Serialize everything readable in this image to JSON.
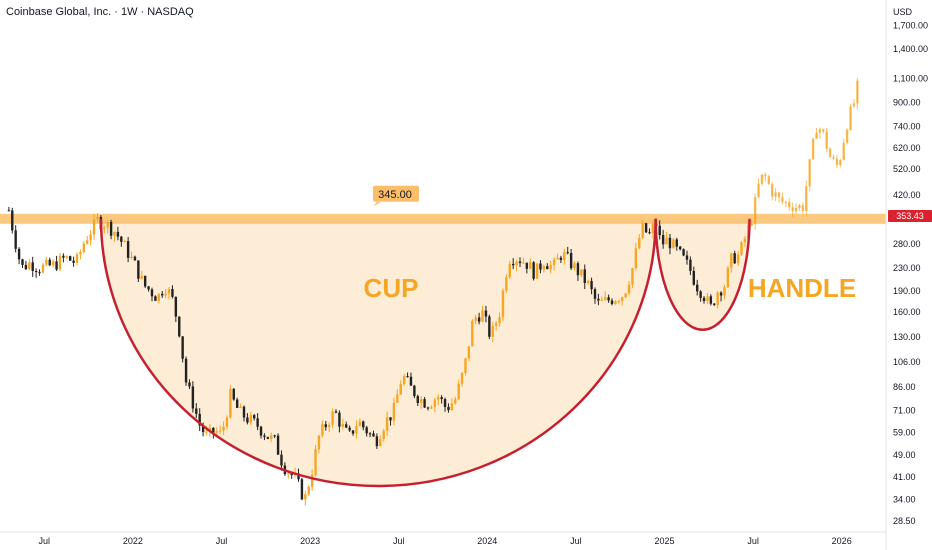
{
  "header": {
    "title": "Coinbase Global, Inc. · 1W · NASDAQ"
  },
  "chart_data": {
    "type": "candlestick",
    "title": "Coinbase Global, Inc. · 1W · NASDAQ",
    "currency": "USD",
    "y_scale": "log",
    "ylim": [
      26,
      2100
    ],
    "xlim": [
      2021.25,
      2026.25
    ],
    "y_ticks": [
      "1,700.00",
      "1,400.00",
      "1,100.00",
      "900.00",
      "740.00",
      "620.00",
      "520.00",
      "420.00",
      "280.00",
      "230.00",
      "190.00",
      "160.00",
      "130.00",
      "106.00",
      "86.00",
      "71.00",
      "59.00",
      "49.00",
      "41.00",
      "34.00",
      "28.50"
    ],
    "x_ticks": [
      {
        "label": "Jul",
        "t": 2021.5
      },
      {
        "label": "2022",
        "t": 2022.0
      },
      {
        "label": "Jul",
        "t": 2022.5
      },
      {
        "label": "2023",
        "t": 2023.0
      },
      {
        "label": "Jul",
        "t": 2023.5
      },
      {
        "label": "2024",
        "t": 2024.0
      },
      {
        "label": "Jul",
        "t": 2024.5
      },
      {
        "label": "2025",
        "t": 2025.0
      },
      {
        "label": "Jul",
        "t": 2025.5
      },
      {
        "label": "2026",
        "t": 2026.0
      }
    ],
    "current_price": "353.43",
    "resistance_level": {
      "label": "345.00",
      "value": 345
    },
    "annotations": {
      "cup": "CUP",
      "handle": "HANDLE"
    },
    "price_path": [
      [
        2021.3,
        370
      ],
      [
        2021.33,
        300
      ],
      [
        2021.37,
        230
      ],
      [
        2021.42,
        240
      ],
      [
        2021.47,
        230
      ],
      [
        2021.55,
        235
      ],
      [
        2021.62,
        250
      ],
      [
        2021.68,
        240
      ],
      [
        2021.73,
        290
      ],
      [
        2021.8,
        340
      ],
      [
        2021.85,
        330
      ],
      [
        2021.9,
        310
      ],
      [
        2021.96,
        270
      ],
      [
        2022.02,
        230
      ],
      [
        2022.06,
        200
      ],
      [
        2022.1,
        190
      ],
      [
        2022.14,
        180
      ],
      [
        2022.18,
        200
      ],
      [
        2022.22,
        180
      ],
      [
        2022.26,
        140
      ],
      [
        2022.3,
        90
      ],
      [
        2022.34,
        75
      ],
      [
        2022.38,
        62
      ],
      [
        2022.42,
        57
      ],
      [
        2022.46,
        60
      ],
      [
        2022.5,
        58
      ],
      [
        2022.55,
        80
      ],
      [
        2022.6,
        70
      ],
      [
        2022.65,
        66
      ],
      [
        2022.7,
        63
      ],
      [
        2022.75,
        58
      ],
      [
        2022.8,
        55
      ],
      [
        2022.85,
        45
      ],
      [
        2022.92,
        40
      ],
      [
        2022.97,
        34
      ],
      [
        2023.01,
        43
      ],
      [
        2023.05,
        57
      ],
      [
        2023.1,
        65
      ],
      [
        2023.14,
        70
      ],
      [
        2023.18,
        62
      ],
      [
        2023.22,
        57
      ],
      [
        2023.27,
        65
      ],
      [
        2023.32,
        60
      ],
      [
        2023.37,
        55
      ],
      [
        2023.42,
        64
      ],
      [
        2023.47,
        70
      ],
      [
        2023.52,
        95
      ],
      [
        2023.57,
        85
      ],
      [
        2023.62,
        78
      ],
      [
        2023.67,
        75
      ],
      [
        2023.72,
        80
      ],
      [
        2023.77,
        72
      ],
      [
        2023.82,
        78
      ],
      [
        2023.87,
        100
      ],
      [
        2023.92,
        150
      ],
      [
        2023.97,
        160
      ],
      [
        2024.02,
        130
      ],
      [
        2024.07,
        160
      ],
      [
        2024.12,
        250
      ],
      [
        2024.17,
        250
      ],
      [
        2024.22,
        240
      ],
      [
        2024.27,
        220
      ],
      [
        2024.32,
        245
      ],
      [
        2024.37,
        230
      ],
      [
        2024.42,
        260
      ],
      [
        2024.47,
        240
      ],
      [
        2024.52,
        220
      ],
      [
        2024.57,
        200
      ],
      [
        2024.62,
        170
      ],
      [
        2024.67,
        175
      ],
      [
        2024.72,
        180
      ],
      [
        2024.77,
        185
      ],
      [
        2024.82,
        230
      ],
      [
        2024.87,
        320
      ],
      [
        2024.92,
        300
      ],
      [
        2024.95,
        340
      ],
      [
        2024.98,
        280
      ],
      [
        2025.02,
        290
      ],
      [
        2025.06,
        270
      ],
      [
        2025.1,
        250
      ],
      [
        2025.14,
        230
      ],
      [
        2025.18,
        200
      ],
      [
        2025.22,
        185
      ],
      [
        2025.26,
        165
      ],
      [
        2025.3,
        190
      ],
      [
        2025.34,
        200
      ],
      [
        2025.38,
        250
      ],
      [
        2025.42,
        255
      ],
      [
        2025.46,
        300
      ],
      [
        2025.5,
        360
      ],
      [
        2025.53,
        450
      ],
      [
        2025.56,
        500
      ],
      [
        2025.6,
        440
      ],
      [
        2025.65,
        400
      ],
      [
        2025.7,
        390
      ],
      [
        2025.75,
        380
      ],
      [
        2025.78,
        380
      ],
      [
        2025.82,
        540
      ],
      [
        2025.86,
        760
      ],
      [
        2025.9,
        680
      ],
      [
        2025.94,
        560
      ],
      [
        2025.98,
        530
      ],
      [
        2026.03,
        760
      ],
      [
        2026.07,
        900
      ],
      [
        2026.1,
        1100
      ]
    ]
  }
}
